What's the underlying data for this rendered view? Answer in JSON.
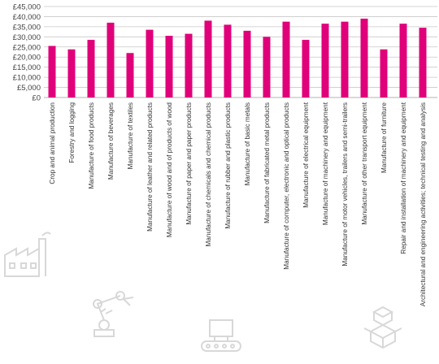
{
  "chart_data": {
    "type": "bar",
    "title": "",
    "xlabel": "",
    "ylabel": "",
    "ylim": [
      0,
      45000
    ],
    "y_ticks": [
      0,
      5000,
      10000,
      15000,
      20000,
      25000,
      30000,
      35000,
      40000,
      45000
    ],
    "y_tick_labels": [
      "£0",
      "£5,000",
      "£10,000",
      "£15,000",
      "£20,000",
      "£25,000",
      "£30,000",
      "£35,000",
      "£40,000",
      "£45,000"
    ],
    "grid": true,
    "legend": "none",
    "bar_color": "#e0007a",
    "categories": [
      "Crop and animal production",
      "Forestry and logging",
      "Manufacture of food products",
      "Manufacture of beverages",
      "Manufacture of textiles",
      "Manufacture of leather and related products",
      "Manufacture of wood and of products of wood",
      "Manufacture of paper and paper products",
      "Manufacture of chemicals and chemical products",
      "Manufacture of rubber and plastic products",
      "Manufacture of basic metals",
      "Manufacture of fabricated metal products",
      "Manufacture of computer, electronic and optical products",
      "Manufacture of electrical equipment",
      "Manufacture of machinery and equipment",
      "Manufacture of motor vehicles, trailers and semi-trailers",
      "Manufacture of other transport equipment",
      "Manufacture of furniture",
      "Repair and installation of machinery and equipment",
      "Architectural and engineering activities; technical testing and analysis"
    ],
    "values": [
      25500,
      23800,
      28500,
      37000,
      22000,
      33500,
      30500,
      31500,
      38000,
      36000,
      33000,
      30000,
      37500,
      28500,
      36500,
      37500,
      39000,
      23800,
      36500,
      34500
    ]
  },
  "decor": {
    "icons": [
      "factory-icon",
      "robot-arm-icon",
      "conveyor-icon",
      "boxes-icon"
    ],
    "icon_color": "#d8d8d8"
  }
}
